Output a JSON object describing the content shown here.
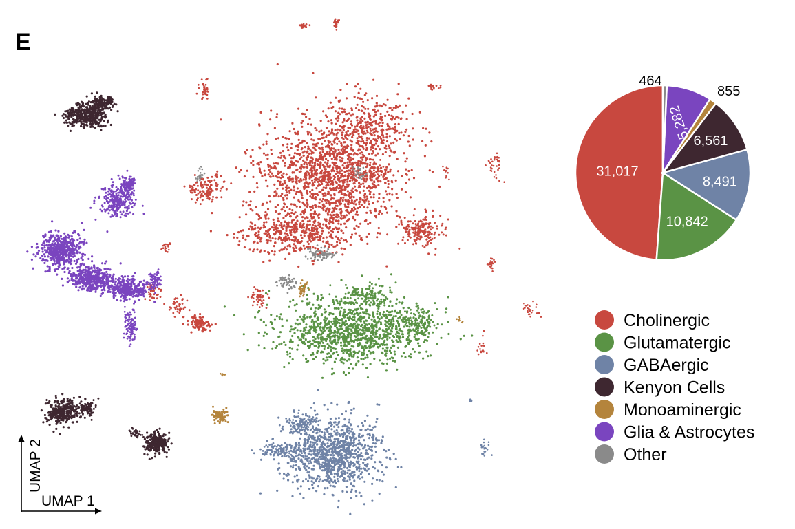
{
  "panel_letter": "E",
  "chart_data": [
    {
      "type": "scatter",
      "subtype": "umap-embedding",
      "xlabel": "UMAP 1",
      "ylabel": "UMAP 2",
      "grid": false
    },
    {
      "type": "pie",
      "categories": [
        "Cholinergic",
        "Glutamatergic",
        "GABAergic",
        "Kenyon Cells",
        "Monoaminergic",
        "Glia & Astrocytes",
        "Other"
      ],
      "values": [
        31017,
        10842,
        8491,
        6561,
        855,
        5282,
        464
      ],
      "labels": [
        "31,017",
        "10,842",
        "8,491",
        "6,561",
        "855",
        "5,282",
        "464"
      ],
      "colors": [
        "#c8483f",
        "#5a9345",
        "#6f83a6",
        "#3e2730",
        "#b4843c",
        "#7a45bf",
        "#8a8a8a"
      ],
      "legend_position": "bottom-right"
    }
  ]
}
